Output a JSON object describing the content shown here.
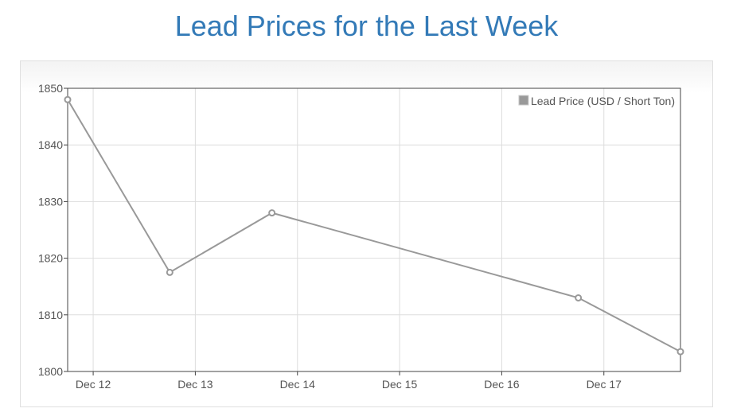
{
  "page": {
    "title": "Lead Prices for the Last Week"
  },
  "chart_data": {
    "type": "line",
    "title": "Lead Prices for the Last Week",
    "xlabel": "",
    "ylabel": "",
    "x_ticks": [
      "Dec 12",
      "Dec 13",
      "Dec 14",
      "Dec 15",
      "Dec 16",
      "Dec 17"
    ],
    "y_ticks": [
      1800,
      1810,
      1820,
      1830,
      1840,
      1850
    ],
    "xlim": [
      "2023-12-11 18:00",
      "2023-12-17 18:00"
    ],
    "ylim": [
      1800,
      1850
    ],
    "grid": true,
    "legend_position": "top-right",
    "colors": {
      "series": "#999999",
      "grid": "#dddddd",
      "axis": "#444444"
    },
    "series": [
      {
        "name": "Lead Price (USD / Short Ton)",
        "points": [
          {
            "x": "2023-12-11 18:00",
            "y": 1848
          },
          {
            "x": "2023-12-12 18:00",
            "y": 1817.5
          },
          {
            "x": "2023-12-13 18:00",
            "y": 1828
          },
          {
            "x": "2023-12-16 18:00",
            "y": 1813
          },
          {
            "x": "2023-12-17 18:00",
            "y": 1803.5
          }
        ]
      }
    ]
  }
}
